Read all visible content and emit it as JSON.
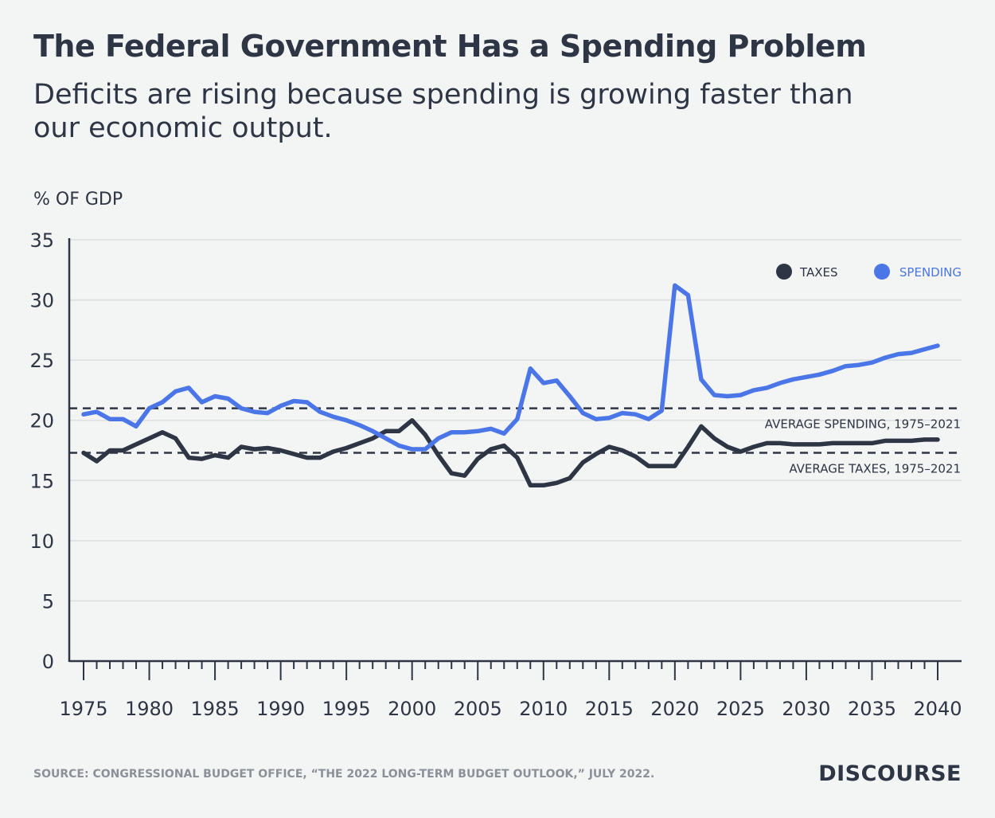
{
  "title": "The Federal Government Has a Spending Problem",
  "subtitle": "Deficits are rising because spending is growing faster than our economic output.",
  "source": "SOURCE: CONGRESSIONAL BUDGET OFFICE, “THE 2022 LONG-TERM BUDGET OUTLOOK,” JULY 2022.",
  "logo": "DISCOURSE",
  "colors": {
    "taxes": "#2e3544",
    "spending": "#4a76e8",
    "background": "#f3f4f4",
    "grid": "#dcdedf"
  },
  "chart_data": {
    "type": "line",
    "ylabel": "% OF GDP",
    "xlim": [
      1975,
      2040
    ],
    "ylim": [
      0,
      35
    ],
    "yticks": [
      0,
      5,
      10,
      15,
      20,
      25,
      30,
      35
    ],
    "xticks": [
      1975,
      1980,
      1985,
      1990,
      1995,
      2000,
      2005,
      2010,
      2015,
      2020,
      2025,
      2030,
      2035,
      2040
    ],
    "grid": true,
    "legend_placement": "top-right",
    "x": [
      1975,
      1976,
      1977,
      1978,
      1979,
      1980,
      1981,
      1982,
      1983,
      1984,
      1985,
      1986,
      1987,
      1988,
      1989,
      1990,
      1991,
      1992,
      1993,
      1994,
      1995,
      1996,
      1997,
      1998,
      1999,
      2000,
      2001,
      2002,
      2003,
      2004,
      2005,
      2006,
      2007,
      2008,
      2009,
      2010,
      2011,
      2012,
      2013,
      2014,
      2015,
      2016,
      2017,
      2018,
      2019,
      2020,
      2021,
      2022,
      2023,
      2024,
      2025,
      2026,
      2027,
      2028,
      2029,
      2030,
      2031,
      2032,
      2033,
      2034,
      2035,
      2036,
      2037,
      2038,
      2039,
      2040
    ],
    "series": [
      {
        "name": "TAXES",
        "color": "#2e3544",
        "values": [
          17.3,
          16.6,
          17.5,
          17.5,
          18.0,
          18.5,
          19.0,
          18.5,
          16.9,
          16.8,
          17.1,
          16.9,
          17.8,
          17.6,
          17.7,
          17.5,
          17.2,
          16.9,
          16.9,
          17.4,
          17.7,
          18.1,
          18.5,
          19.1,
          19.1,
          20.0,
          18.8,
          17.1,
          15.6,
          15.4,
          16.8,
          17.6,
          17.9,
          16.9,
          14.6,
          14.6,
          14.8,
          15.2,
          16.5,
          17.2,
          17.8,
          17.5,
          17.0,
          16.2,
          16.2,
          16.2,
          17.8,
          19.5,
          18.5,
          17.8,
          17.4,
          17.8,
          18.1,
          18.1,
          18.0,
          18.0,
          18.0,
          18.1,
          18.1,
          18.1,
          18.1,
          18.3,
          18.3,
          18.3,
          18.4,
          18.4
        ]
      },
      {
        "name": "SPENDING",
        "color": "#4a76e8",
        "values": [
          20.5,
          20.7,
          20.1,
          20.1,
          19.5,
          21.0,
          21.5,
          22.4,
          22.7,
          21.5,
          22.0,
          21.8,
          21.0,
          20.7,
          20.6,
          21.2,
          21.6,
          21.5,
          20.7,
          20.3,
          20.0,
          19.6,
          19.1,
          18.5,
          17.9,
          17.6,
          17.6,
          18.5,
          19.0,
          19.0,
          19.1,
          19.3,
          18.9,
          20.1,
          24.3,
          23.1,
          23.3,
          22.0,
          20.6,
          20.1,
          20.2,
          20.6,
          20.5,
          20.1,
          20.8,
          31.2,
          30.4,
          23.4,
          22.1,
          22.0,
          22.1,
          22.5,
          22.7,
          23.1,
          23.4,
          23.6,
          23.8,
          24.1,
          24.5,
          24.6,
          24.8,
          25.2,
          25.5,
          25.6,
          25.9,
          26.2
        ]
      }
    ],
    "reference_lines": [
      {
        "label": "AVERAGE SPENDING, 1975–2021",
        "value": 21.0
      },
      {
        "label": "AVERAGE TAXES, 1975–2021",
        "value": 17.3
      }
    ]
  }
}
